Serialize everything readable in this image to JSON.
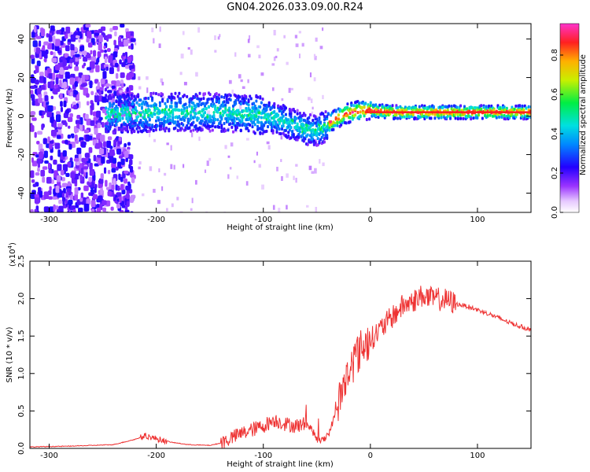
{
  "title": "GN04.2026.033.09.00.R24",
  "chart_data": [
    {
      "type": "heatmap",
      "xlabel": "Height of straight line (km)",
      "ylabel": "Frequency (Hz)",
      "xlim": [
        -318,
        150
      ],
      "ylim": [
        -50,
        48
      ],
      "xticks": [
        -300,
        -200,
        -100,
        0,
        100
      ],
      "yticks": [
        -40,
        -20,
        0,
        20,
        40
      ],
      "colorbar": {
        "label": "Normalized spectral amplitude",
        "range": [
          0,
          0.96
        ],
        "ticks": [
          "0.0",
          "0.2",
          "0.4",
          "0.6",
          "0.8"
        ],
        "tick_values": [
          0,
          0.2,
          0.4,
          0.6,
          0.8
        ],
        "colormap": "white-purple-blue-cyan-green-yellow-orange-red-magenta"
      },
      "ridge": {
        "x": [
          -318,
          -250,
          -200,
          -150,
          -110,
          -90,
          -75,
          -60,
          -52,
          -45,
          -35,
          -25,
          -10,
          0,
          20,
          50,
          100,
          150
        ],
        "y": [
          0,
          1,
          2,
          2,
          1,
          -1,
          -4,
          -7,
          -8,
          -6,
          -2,
          1,
          3,
          3,
          2,
          2,
          2,
          2
        ]
      }
    },
    {
      "type": "line",
      "xlabel": "Height of straight line (km)",
      "ylabel": "SNR (10 * v/v)",
      "yscale_label": "(x10",
      "yscale_exponent": "4",
      "xlim": [
        -318,
        150
      ],
      "ylim": [
        0,
        2.5
      ],
      "xticks": [
        -300,
        -200,
        -100,
        0,
        100
      ],
      "yticks": [
        "0.0",
        "0.5",
        "1.0",
        "1.5",
        "2.0",
        "2.5"
      ],
      "ytick_values": [
        0,
        0.5,
        1.0,
        1.5,
        2.0,
        2.5
      ],
      "series": [
        {
          "color": "#ee3333",
          "x": [
            -318,
            -280,
            -240,
            -220,
            -210,
            -200,
            -185,
            -170,
            -150,
            -140,
            -130,
            -120,
            -100,
            -90,
            -80,
            -70,
            -60,
            -55,
            -50,
            -45,
            -38,
            -30,
            -25,
            -20,
            -15,
            -10,
            -5,
            0,
            10,
            20,
            30,
            40,
            50,
            55,
            60,
            70,
            80,
            90,
            100,
            110,
            120,
            130,
            140,
            150
          ],
          "y": [
            0.02,
            0.03,
            0.05,
            0.12,
            0.17,
            0.13,
            0.08,
            0.05,
            0.04,
            0.07,
            0.14,
            0.2,
            0.3,
            0.38,
            0.33,
            0.3,
            0.33,
            0.26,
            0.12,
            0.1,
            0.22,
            0.6,
            0.85,
            1.0,
            1.2,
            1.3,
            1.4,
            1.45,
            1.6,
            1.75,
            1.9,
            1.97,
            2.05,
            2.0,
            2.0,
            1.98,
            1.93,
            1.9,
            1.85,
            1.8,
            1.74,
            1.68,
            1.63,
            1.58
          ]
        }
      ]
    }
  ]
}
